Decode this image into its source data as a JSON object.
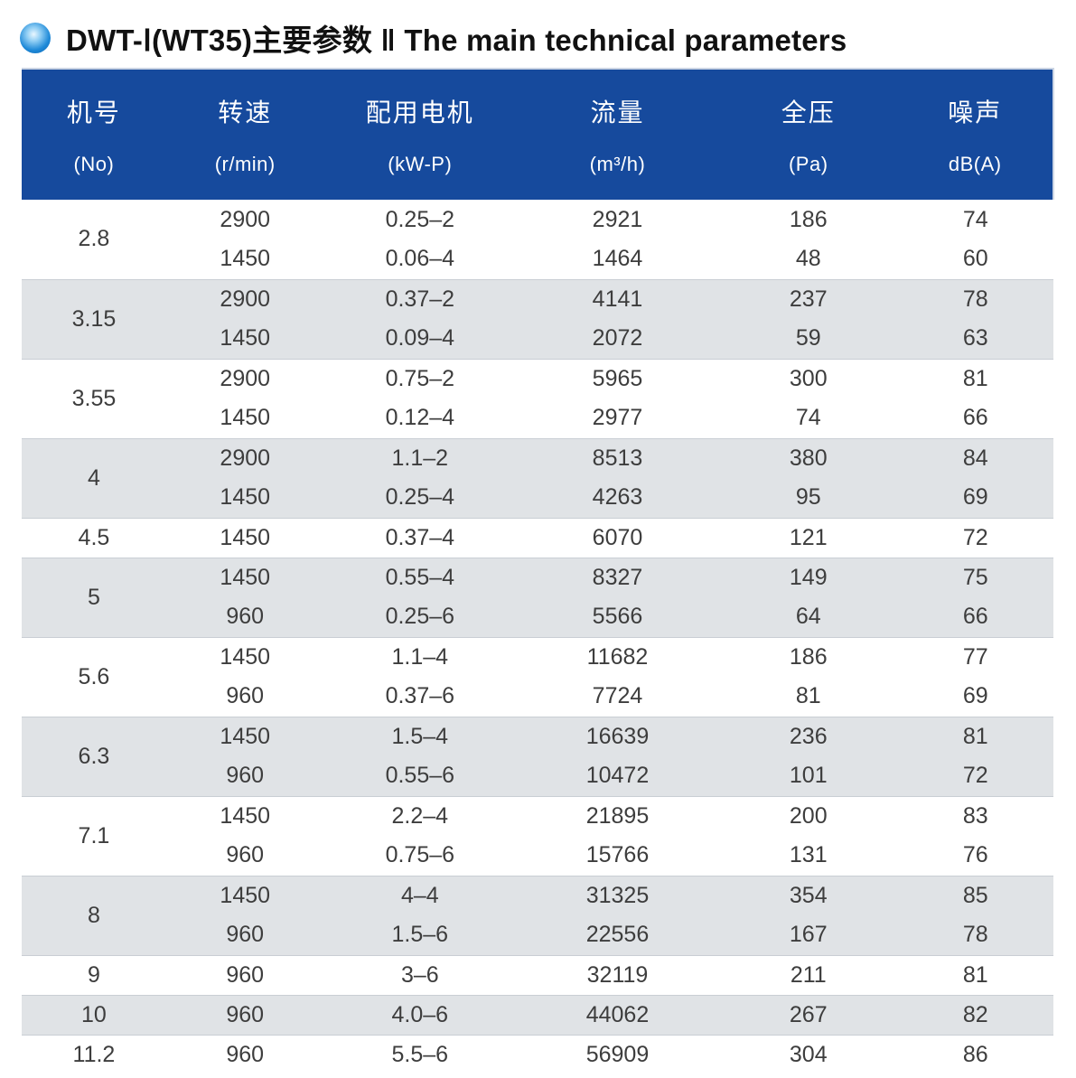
{
  "page": {
    "title": "DWT-Ⅰ(WT35)主要参数 ‖ The main technical parameters",
    "header_bg_color": "#164a9d",
    "stripe_color": "#e0e3e6",
    "bullet_color": "#1582d2"
  },
  "table": {
    "columns": [
      {
        "label": "机号",
        "sub": "(No)"
      },
      {
        "label": "转速",
        "sub": "(r/min)"
      },
      {
        "label": "配用电机",
        "sub": "(kW-P)"
      },
      {
        "label": "流量",
        "sub": "(m³/h)"
      },
      {
        "label": "全压",
        "sub": "(Pa)"
      },
      {
        "label": "噪声",
        "sub": "dB(A)"
      }
    ],
    "groups": [
      {
        "no": "2.8",
        "rows": [
          [
            "2900",
            "0.25–2",
            "2921",
            "186",
            "74"
          ],
          [
            "1450",
            "0.06–4",
            "1464",
            "48",
            "60"
          ]
        ]
      },
      {
        "no": "3.15",
        "rows": [
          [
            "2900",
            "0.37–2",
            "4141",
            "237",
            "78"
          ],
          [
            "1450",
            "0.09–4",
            "2072",
            "59",
            "63"
          ]
        ]
      },
      {
        "no": "3.55",
        "rows": [
          [
            "2900",
            "0.75–2",
            "5965",
            "300",
            "81"
          ],
          [
            "1450",
            "0.12–4",
            "2977",
            "74",
            "66"
          ]
        ]
      },
      {
        "no": "4",
        "rows": [
          [
            "2900",
            "1.1–2",
            "8513",
            "380",
            "84"
          ],
          [
            "1450",
            "0.25–4",
            "4263",
            "95",
            "69"
          ]
        ]
      },
      {
        "no": "4.5",
        "rows": [
          [
            "1450",
            "0.37–4",
            "6070",
            "121",
            "72"
          ]
        ]
      },
      {
        "no": "5",
        "rows": [
          [
            "1450",
            "0.55–4",
            "8327",
            "149",
            "75"
          ],
          [
            "960",
            "0.25–6",
            "5566",
            "64",
            "66"
          ]
        ]
      },
      {
        "no": "5.6",
        "rows": [
          [
            "1450",
            "1.1–4",
            "11682",
            "186",
            "77"
          ],
          [
            "960",
            "0.37–6",
            "7724",
            "81",
            "69"
          ]
        ]
      },
      {
        "no": "6.3",
        "rows": [
          [
            "1450",
            "1.5–4",
            "16639",
            "236",
            "81"
          ],
          [
            "960",
            "0.55–6",
            "10472",
            "101",
            "72"
          ]
        ]
      },
      {
        "no": "7.1",
        "rows": [
          [
            "1450",
            "2.2–4",
            "21895",
            "200",
            "83"
          ],
          [
            "960",
            "0.75–6",
            "15766",
            "131",
            "76"
          ]
        ]
      },
      {
        "no": "8",
        "rows": [
          [
            "1450",
            "4–4",
            "31325",
            "354",
            "85"
          ],
          [
            "960",
            "1.5–6",
            "22556",
            "167",
            "78"
          ]
        ]
      },
      {
        "no": "9",
        "rows": [
          [
            "960",
            "3–6",
            "32119",
            "211",
            "81"
          ]
        ]
      },
      {
        "no": "10",
        "rows": [
          [
            "960",
            "4.0–6",
            "44062",
            "267",
            "82"
          ]
        ]
      },
      {
        "no": "11.2",
        "rows": [
          [
            "960",
            "5.5–6",
            "56909",
            "304",
            "86"
          ]
        ]
      }
    ]
  }
}
